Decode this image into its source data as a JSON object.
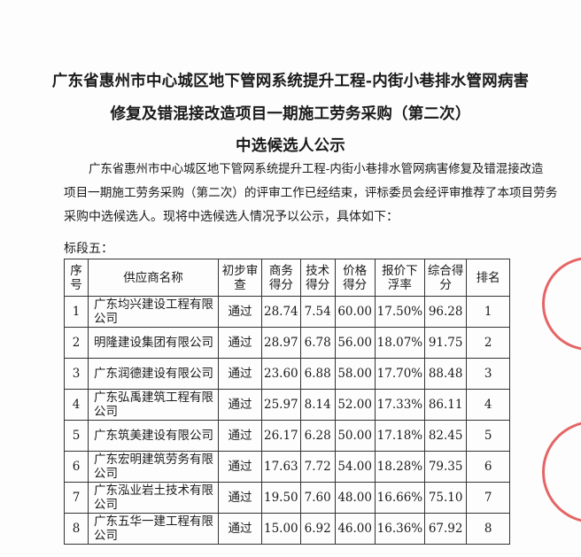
{
  "title_lines": [
    "广东省惠州市中心城区地下管网系统提升工程-内街小巷排水管网病害",
    "修复及错混接改造项目一期施工劳务采购（第二次）",
    "中选候选人公示"
  ],
  "intro_lines": [
    "广东省惠州市中心城区地下管网系统提升工程-内街小巷排水管网病害修复及错混接改造",
    "项目一期施工劳务采购（第二次）的评审工作已经结束，评标委员会经评审推荐了本项目劳务",
    "采购中选候选人。现将中选候选人情况予以公示，具体如下："
  ],
  "section_label": "标段五：",
  "table": {
    "headers": [
      "序号",
      "供应商名称",
      "初步审查",
      "商务得分",
      "技术得分",
      "价格得分",
      "报价下浮率",
      "综合得分",
      "排名"
    ],
    "rows": [
      [
        "1",
        "广东均兴建设工程有限公司",
        "通过",
        "28.74",
        "7.54",
        "60.00",
        "17.50%",
        "96.28",
        "1"
      ],
      [
        "2",
        "明隆建设集团有限公司",
        "通过",
        "28.97",
        "6.78",
        "56.00",
        "18.07%",
        "91.75",
        "2"
      ],
      [
        "3",
        "广东润德建设有限公司",
        "通过",
        "23.60",
        "6.88",
        "58.00",
        "17.70%",
        "88.48",
        "3"
      ],
      [
        "4",
        "广东弘禹建筑工程有限公司",
        "通过",
        "25.97",
        "8.14",
        "52.00",
        "17.33%",
        "86.11",
        "4"
      ],
      [
        "5",
        "广东筑美建设有限公司",
        "通过",
        "26.17",
        "6.28",
        "50.00",
        "17.18%",
        "82.45",
        "5"
      ],
      [
        "6",
        "广东宏明建筑劳务有限公司",
        "通过",
        "17.63",
        "7.72",
        "54.00",
        "18.28%",
        "79.35",
        "6"
      ],
      [
        "7",
        "广东泓业岩土技术有限公司",
        "通过",
        "19.50",
        "7.60",
        "48.00",
        "16.66%",
        "75.10",
        "7"
      ],
      [
        "8",
        "广东五华一建工程有限公司",
        "通过",
        "15.00",
        "6.92",
        "46.00",
        "16.36%",
        "67.92",
        "8"
      ]
    ]
  },
  "seals": [
    "seal-top-right",
    "seal-bottom-right"
  ],
  "seal_color": "#dc3232"
}
